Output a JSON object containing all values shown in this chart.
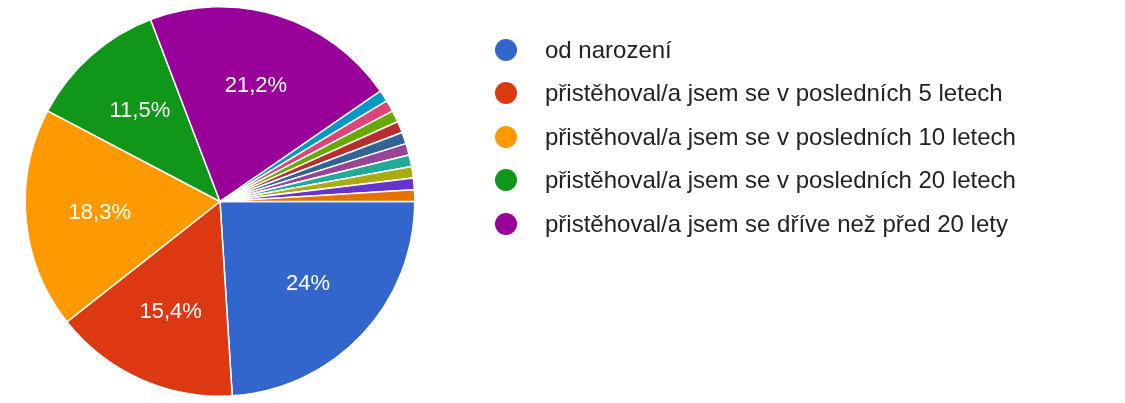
{
  "chart_data": {
    "type": "pie",
    "categories": [
      "od narození",
      "přistěhoval/a jsem se v posledních 5 letech",
      "přistěhoval/a jsem se v posledních 10 letech",
      "přistěhoval/a jsem se v posledních 20 letech",
      "přistěhoval/a jsem se dříve než před 20 lety",
      null,
      null,
      null,
      null,
      null,
      null,
      null,
      null,
      null,
      null
    ],
    "values": [
      24,
      15.4,
      18.3,
      11.5,
      21.2,
      0.96,
      0.96,
      0.96,
      0.96,
      0.96,
      0.96,
      0.96,
      0.96,
      0.96,
      0.96
    ],
    "colors": [
      "#3366cc",
      "#dc3912",
      "#ff9900",
      "#109618",
      "#990099",
      "#0099c6",
      "#dd4477",
      "#66aa00",
      "#b82e2e",
      "#316395",
      "#994499",
      "#22aa99",
      "#aaaa11",
      "#6633cc",
      "#e67300"
    ],
    "value_labels": [
      "24%",
      "15,4%",
      "18,3%",
      "11,5%",
      "21,2%",
      null,
      null,
      null,
      null,
      null,
      null,
      null,
      null,
      null,
      null
    ],
    "legend": "right"
  }
}
